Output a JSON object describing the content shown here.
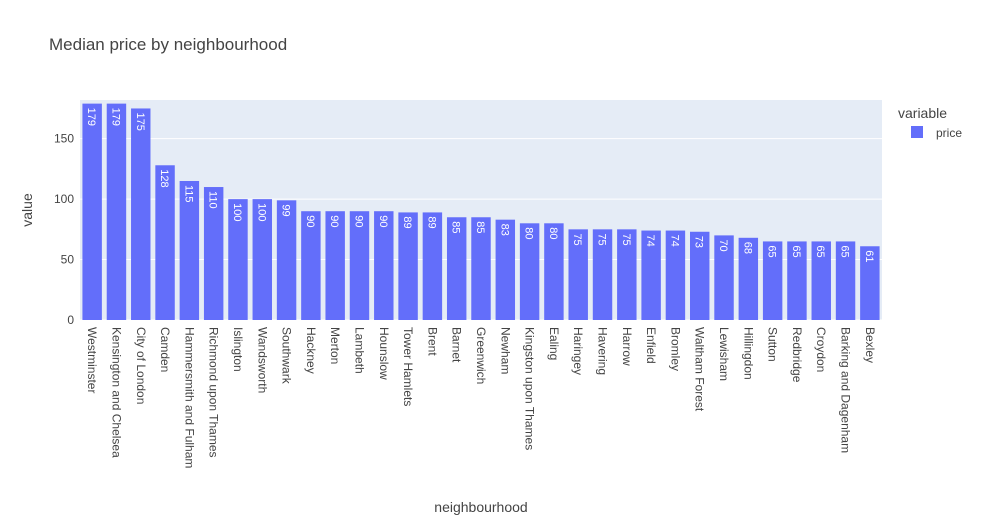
{
  "chart_data": {
    "type": "bar",
    "title": "Median price by neighbourhood",
    "xlabel": "neighbourhood",
    "ylabel": "value",
    "ylim": [
      0,
      182
    ],
    "yticks": [
      0,
      50,
      100,
      150
    ],
    "grid": true,
    "legend": {
      "title": "variable",
      "placement": "right"
    },
    "series_color": "#636efa",
    "plot_bg": "#e5ecf6",
    "categories": [
      "Westminster",
      "Kensington and Chelsea",
      "City of London",
      "Camden",
      "Hammersmith and Fulham",
      "Richmond upon Thames",
      "Islington",
      "Wandsworth",
      "Southwark",
      "Hackney",
      "Merton",
      "Lambeth",
      "Hounslow",
      "Tower Hamlets",
      "Brent",
      "Barnet",
      "Greenwich",
      "Newham",
      "Kingston upon Thames",
      "Ealing",
      "Haringey",
      "Havering",
      "Harrow",
      "Enfield",
      "Bromley",
      "Waltham Forest",
      "Lewisham",
      "Hillingdon",
      "Sutton",
      "Redbridge",
      "Croydon",
      "Barking and Dagenham",
      "Bexley"
    ],
    "series": [
      {
        "name": "price",
        "values": [
          179,
          179,
          175,
          128,
          115,
          110,
          100,
          100,
          99,
          90,
          90,
          90,
          90,
          89,
          89,
          85,
          85,
          83,
          80,
          80,
          75,
          75,
          75,
          74,
          74,
          73,
          70,
          68,
          65,
          65,
          65,
          65,
          61
        ]
      }
    ]
  }
}
